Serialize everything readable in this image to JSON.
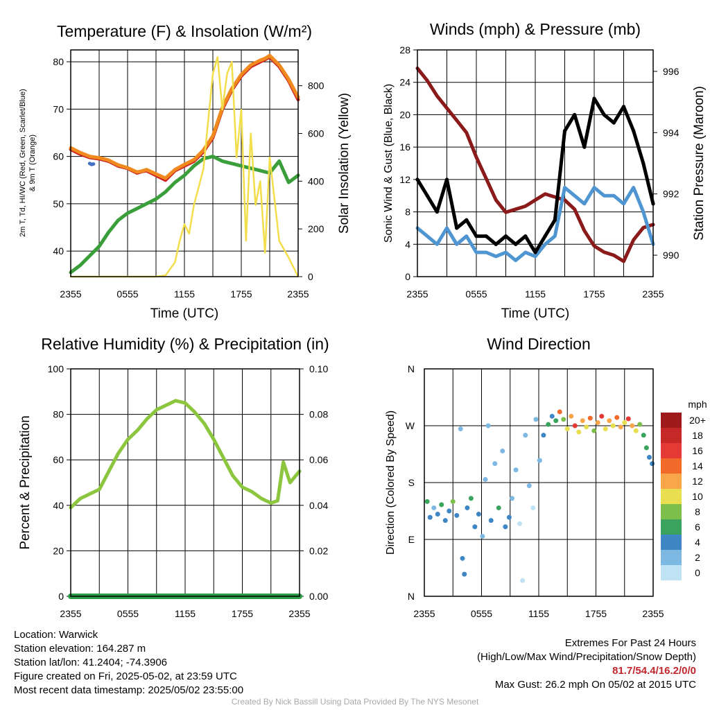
{
  "chart_data": [
    {
      "type": "line",
      "title": "Temperature (F) & Insolation (W/m²)",
      "xlabel": "Time (UTC)",
      "ylabel_left": "2m T, Td, HI/WC (Red, Green, Scarlet/Blue) & 9m T (Orange)",
      "ylabel_right": "Solar Insolation (Yellow)",
      "x_ticks": [
        "2355",
        "0555",
        "1155",
        "1755",
        "2355"
      ],
      "y_left_ticks": [
        40,
        50,
        60,
        70,
        80
      ],
      "y_right_ticks": [
        0,
        200,
        400,
        600,
        800
      ],
      "ylim_left": [
        34.6,
        82.5
      ],
      "ylim_right": [
        0,
        950
      ],
      "xlim_hours": [
        0,
        24
      ],
      "series": [
        {
          "color": "#cc2222",
          "x": [
            0,
            1,
            2,
            3,
            4,
            5,
            6,
            7,
            7.5,
            8,
            9,
            10,
            11,
            12,
            13,
            14,
            15,
            16,
            17,
            18,
            19,
            20,
            20.5,
            21,
            22,
            23,
            24
          ],
          "y": [
            61.5,
            60.5,
            59.8,
            59.5,
            59,
            58,
            57.5,
            56.5,
            56.8,
            57,
            56,
            55,
            57,
            58,
            59,
            61,
            64,
            70,
            74,
            77,
            79,
            80,
            80.5,
            81,
            79,
            76,
            72
          ]
        },
        {
          "color": "#f08a1e",
          "x": [
            0,
            1,
            2,
            3,
            4,
            5,
            6,
            7,
            7.5,
            8,
            9,
            10,
            11,
            12,
            13,
            14,
            15,
            16,
            17,
            18,
            19,
            20,
            20.5,
            21,
            22,
            23,
            24
          ],
          "y": [
            61.8,
            60.8,
            60,
            59.7,
            59.2,
            58.2,
            57.6,
            56.7,
            56.9,
            57.2,
            56.3,
            55.4,
            57.2,
            58.3,
            59.3,
            61.3,
            64.3,
            70.3,
            74.3,
            77.3,
            79.3,
            80.3,
            80.7,
            81.3,
            79.3,
            76.3,
            72.5
          ]
        },
        {
          "color": "#3a9e3a",
          "x": [
            0,
            1,
            2,
            3,
            4,
            5,
            6,
            7,
            8,
            9,
            10,
            11,
            12,
            13,
            14,
            15,
            16,
            17,
            18,
            19,
            20,
            21,
            22,
            23,
            24
          ],
          "y": [
            35.5,
            37,
            39,
            41,
            44,
            46.5,
            48,
            49,
            50,
            51,
            52.5,
            54.5,
            56,
            58,
            59.5,
            60,
            59,
            58.5,
            58,
            57.5,
            57,
            56.5,
            59,
            54.5,
            56
          ]
        },
        {
          "color": "#f2de4a",
          "x": [
            0,
            2,
            4,
            6,
            8,
            9,
            10,
            11,
            11.5,
            12,
            12.5,
            13,
            14,
            15,
            15.5,
            16,
            16.5,
            17,
            17.5,
            18,
            18.5,
            19,
            19.5,
            20,
            20.5,
            21,
            22,
            23,
            24
          ],
          "y": [
            0,
            0,
            0,
            0,
            0,
            0,
            5,
            60,
            150,
            220,
            180,
            300,
            450,
            850,
            920,
            700,
            850,
            900,
            500,
            700,
            150,
            600,
            300,
            400,
            100,
            500,
            150,
            80,
            0
          ]
        },
        {
          "color": "#4472c4",
          "x": [
            2,
            2.2,
            2.4
          ],
          "y": [
            58.5,
            58.3,
            58.4
          ]
        }
      ]
    },
    {
      "type": "line",
      "title": "Winds (mph) & Pressure (mb)",
      "xlabel": "Time (UTC)",
      "ylabel_left": "Sonic Wind & Gust (Blue, Black)",
      "ylabel_right": "Station Pressure (Maroon)",
      "x_ticks": [
        "2355",
        "0555",
        "1155",
        "1755",
        "2355"
      ],
      "y_left_ticks": [
        0,
        4,
        8,
        12,
        16,
        20,
        24,
        28
      ],
      "y_right_ticks": [
        990,
        992,
        994,
        996
      ],
      "ylim_left": [
        0,
        28
      ],
      "ylim_right": [
        989.3,
        996.7
      ],
      "xlim_hours": [
        0,
        24
      ],
      "series": [
        {
          "color": "#8b1a1a",
          "x": [
            0,
            1,
            2,
            3,
            4,
            5,
            6,
            7,
            8,
            9,
            10,
            11,
            12,
            13,
            14,
            15,
            16,
            17,
            18,
            19,
            20,
            21,
            22,
            23,
            24
          ],
          "y": [
            996.1,
            995.7,
            995.2,
            994.8,
            994.4,
            994,
            993.2,
            992.5,
            991.8,
            991.4,
            991.5,
            991.6,
            991.8,
            992,
            991.9,
            991.8,
            991.5,
            990.8,
            990.3,
            990.1,
            990,
            989.8,
            990.5,
            990.9,
            991.0
          ]
        },
        {
          "color": "#4f95d1",
          "x": [
            0,
            1,
            2,
            3,
            4,
            5,
            6,
            7,
            8,
            9,
            10,
            11,
            12,
            13,
            14,
            15,
            16,
            17,
            18,
            19,
            20,
            21,
            22,
            23,
            24
          ],
          "y": [
            6,
            5,
            4,
            6,
            4,
            5,
            3,
            3,
            2.5,
            3,
            2,
            3,
            2.5,
            4,
            5,
            11,
            10,
            9,
            11,
            10,
            10,
            9,
            11,
            8,
            4
          ]
        },
        {
          "color": "#000000",
          "x": [
            0,
            1,
            2,
            3,
            4,
            5,
            6,
            7,
            8,
            9,
            10,
            11,
            12,
            13,
            14,
            15,
            16,
            17,
            18,
            19,
            20,
            21,
            22,
            23,
            24
          ],
          "y": [
            12,
            10,
            8,
            12,
            6,
            7,
            5,
            5,
            4,
            5,
            4,
            5,
            3,
            5,
            7,
            18,
            20,
            16,
            22,
            20,
            19,
            21,
            18,
            14,
            9
          ]
        }
      ]
    },
    {
      "type": "line",
      "title": "Relative Humidity (%) & Precipitation (in)",
      "xlabel": "",
      "ylabel_left": "Percent & Precipitation",
      "x_ticks": [
        "2355",
        "0555",
        "1155",
        "1755",
        "2355"
      ],
      "y_left_ticks": [
        0,
        20,
        40,
        60,
        80,
        100
      ],
      "y_right_ticks": [
        "0.00",
        "0.02",
        "0.04",
        "0.06",
        "0.08",
        "0.10"
      ],
      "ylim_left": [
        0,
        100
      ],
      "ylim_right": [
        0,
        0.1
      ],
      "xlim_hours": [
        0,
        24
      ],
      "series": [
        {
          "color": "#8cc63f",
          "x": [
            0,
            1,
            2,
            3,
            4,
            5,
            6,
            7,
            8,
            9,
            10,
            11,
            12,
            13,
            14,
            15,
            16,
            17,
            18,
            19,
            20,
            21,
            21.7,
            22.3,
            23,
            24
          ],
          "y": [
            39,
            43,
            45,
            47,
            55,
            63,
            69,
            73,
            78,
            82,
            84,
            86,
            85,
            81,
            76,
            69,
            61,
            53,
            48,
            46,
            43,
            41,
            42,
            59,
            50,
            55
          ]
        },
        {
          "color": "#2e9b46",
          "x": [
            0,
            24
          ],
          "y": [
            0,
            0
          ]
        }
      ]
    },
    {
      "type": "scatter",
      "title": "Wind Direction",
      "ylabel": "Direction (Colored By Speed)",
      "x_ticks": [
        "2355",
        "0555",
        "1155",
        "1755",
        "2355"
      ],
      "y_ticks": [
        "N",
        "E",
        "S",
        "W",
        "N"
      ],
      "ylim_degrees": [
        0,
        360
      ],
      "xlim_hours": [
        0,
        24
      ],
      "colorbar_title": "mph",
      "colorbar_labels": [
        "20+",
        "18",
        "16",
        "14",
        "12",
        "10",
        "8",
        "6",
        "4",
        "2",
        "0"
      ],
      "colorbar_colors": [
        "#9e1a1a",
        "#c62828",
        "#e53935",
        "#f26a2a",
        "#f9a54a",
        "#e8de50",
        "#7cc04b",
        "#3aa35e",
        "#3f86c4",
        "#7db8e3",
        "#bfe3f5"
      ],
      "points": [
        {
          "x": 0.3,
          "y": 150,
          "c": "#3aa35e"
        },
        {
          "x": 0.6,
          "y": 125,
          "c": "#3f86c4"
        },
        {
          "x": 1.0,
          "y": 140,
          "c": "#7db8e3"
        },
        {
          "x": 1.4,
          "y": 130,
          "c": "#3f86c4"
        },
        {
          "x": 1.8,
          "y": 145,
          "c": "#3aa35e"
        },
        {
          "x": 2.2,
          "y": 120,
          "c": "#3f86c4"
        },
        {
          "x": 2.6,
          "y": 135,
          "c": "#3f86c4"
        },
        {
          "x": 3.0,
          "y": 150,
          "c": "#7cc04b"
        },
        {
          "x": 3.4,
          "y": 128,
          "c": "#3f86c4"
        },
        {
          "x": 3.8,
          "y": 265,
          "c": "#7db8e3"
        },
        {
          "x": 4.0,
          "y": 60,
          "c": "#3f86c4"
        },
        {
          "x": 4.2,
          "y": 35,
          "c": "#3f86c4"
        },
        {
          "x": 4.5,
          "y": 140,
          "c": "#3f86c4"
        },
        {
          "x": 4.9,
          "y": 155,
          "c": "#3aa35e"
        },
        {
          "x": 5.3,
          "y": 110,
          "c": "#3f86c4"
        },
        {
          "x": 5.7,
          "y": 130,
          "c": "#3f86c4"
        },
        {
          "x": 6.1,
          "y": 95,
          "c": "#7db8e3"
        },
        {
          "x": 6.4,
          "y": 185,
          "c": "#7db8e3"
        },
        {
          "x": 6.7,
          "y": 270,
          "c": "#7db8e3"
        },
        {
          "x": 7.0,
          "y": 120,
          "c": "#3f86c4"
        },
        {
          "x": 7.4,
          "y": 210,
          "c": "#7db8e3"
        },
        {
          "x": 7.8,
          "y": 140,
          "c": "#3aa35e"
        },
        {
          "x": 8.2,
          "y": 230,
          "c": "#7db8e3"
        },
        {
          "x": 8.5,
          "y": 110,
          "c": "#3f86c4"
        },
        {
          "x": 8.9,
          "y": 125,
          "c": "#3f86c4"
        },
        {
          "x": 9.2,
          "y": 155,
          "c": "#7db8e3"
        },
        {
          "x": 9.6,
          "y": 200,
          "c": "#7db8e3"
        },
        {
          "x": 10.0,
          "y": 115,
          "c": "#bfe3f5"
        },
        {
          "x": 10.3,
          "y": 25,
          "c": "#bfe3f5"
        },
        {
          "x": 10.6,
          "y": 255,
          "c": "#7db8e3"
        },
        {
          "x": 11.0,
          "y": 175,
          "c": "#7db8e3"
        },
        {
          "x": 11.4,
          "y": 140,
          "c": "#bfe3f5"
        },
        {
          "x": 11.7,
          "y": 280,
          "c": "#7db8e3"
        },
        {
          "x": 12.1,
          "y": 215,
          "c": "#7db8e3"
        },
        {
          "x": 12.5,
          "y": 255,
          "c": "#3f86c4"
        },
        {
          "x": 13.0,
          "y": 272,
          "c": "#3aa35e"
        },
        {
          "x": 13.4,
          "y": 285,
          "c": "#3f86c4"
        },
        {
          "x": 13.8,
          "y": 278,
          "c": "#3aa35e"
        },
        {
          "x": 14.2,
          "y": 292,
          "c": "#f26a2a"
        },
        {
          "x": 14.6,
          "y": 280,
          "c": "#7cc04b"
        },
        {
          "x": 15.0,
          "y": 265,
          "c": "#e8de50"
        },
        {
          "x": 15.4,
          "y": 285,
          "c": "#f9a54a"
        },
        {
          "x": 15.8,
          "y": 270,
          "c": "#e53935"
        },
        {
          "x": 16.2,
          "y": 260,
          "c": "#e8de50"
        },
        {
          "x": 16.6,
          "y": 278,
          "c": "#f9a54a"
        },
        {
          "x": 17.0,
          "y": 268,
          "c": "#e8de50"
        },
        {
          "x": 17.4,
          "y": 282,
          "c": "#f26a2a"
        },
        {
          "x": 17.8,
          "y": 262,
          "c": "#7cc04b"
        },
        {
          "x": 18.2,
          "y": 275,
          "c": "#f9a54a"
        },
        {
          "x": 18.6,
          "y": 285,
          "c": "#e53935"
        },
        {
          "x": 19.0,
          "y": 265,
          "c": "#e8de50"
        },
        {
          "x": 19.4,
          "y": 278,
          "c": "#f9a54a"
        },
        {
          "x": 19.8,
          "y": 270,
          "c": "#e8de50"
        },
        {
          "x": 20.2,
          "y": 283,
          "c": "#f26a2a"
        },
        {
          "x": 20.6,
          "y": 268,
          "c": "#f9a54a"
        },
        {
          "x": 21.0,
          "y": 275,
          "c": "#e8de50"
        },
        {
          "x": 21.4,
          "y": 281,
          "c": "#e53935"
        },
        {
          "x": 21.8,
          "y": 270,
          "c": "#f9a54a"
        },
        {
          "x": 22.2,
          "y": 262,
          "c": "#e8de50"
        },
        {
          "x": 22.6,
          "y": 272,
          "c": "#7cc04b"
        },
        {
          "x": 23.0,
          "y": 255,
          "c": "#3aa35e"
        },
        {
          "x": 23.3,
          "y": 235,
          "c": "#3aa35e"
        },
        {
          "x": 23.6,
          "y": 220,
          "c": "#3f86c4"
        },
        {
          "x": 23.9,
          "y": 210,
          "c": "#3f86c4"
        }
      ]
    }
  ],
  "info": {
    "location": "Location: Warwick",
    "elevation": "Station elevation: 164.287 m",
    "latlon": "Station lat/lon: 41.2404; -74.3906",
    "created": "Figure created on Fri, 2025-05-02, at 23:59 UTC",
    "recent": "Most recent data timestamp: 2025/05/02 23:55:00"
  },
  "extremes": {
    "title": "Extremes For Past 24 Hours",
    "subtitle": "(High/Low/Max Wind/Precipitation/Snow Depth)",
    "values": "81.7/54.4/16.2/0/0",
    "gust": "Max Gust: 26.2 mph On 05/02 at 2015 UTC"
  },
  "credit": "Created By Nick Bassill Using Data Provided By The NYS Mesonet"
}
